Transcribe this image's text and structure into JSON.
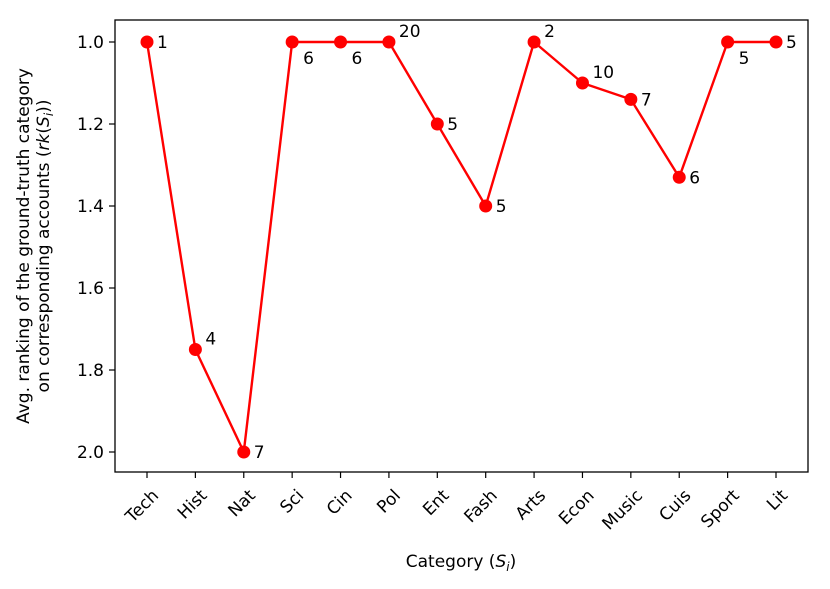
{
  "chart_data": {
    "type": "line",
    "title": "",
    "xlabel": "Category (S_i)",
    "xlabel_prefix": "Category (",
    "xlabel_var": "S",
    "xlabel_sub": "i",
    "xlabel_suffix": ")",
    "ylabel_line1": "Avg. ranking of the ground-truth category",
    "ylabel_line2": "on corresponding accounts (rk(S_i))",
    "ylabel_line2_prefix": "on corresponding accounts (",
    "ylabel_line2_var": "rk",
    "ylabel_line2_open": "(",
    "ylabel_line2_S": "S",
    "ylabel_line2_sub": "i",
    "ylabel_line2_suffix": "))",
    "y_inverted": true,
    "ylim": [
      1.0,
      2.0
    ],
    "yticks": [
      "1.0",
      "1.2",
      "1.4",
      "1.6",
      "1.8",
      "2.0"
    ],
    "grid": false,
    "color": "#ff0000",
    "categories": [
      "Tech",
      "Hist",
      "Nat",
      "Sci",
      "Cin",
      "Pol",
      "Ent",
      "Fash",
      "Arts",
      "Econ",
      "Music",
      "Cuis",
      "Sport",
      "Lit"
    ],
    "values": [
      1.0,
      1.75,
      2.0,
      1.0,
      1.0,
      1.0,
      1.2,
      1.4,
      1.0,
      1.1,
      1.14,
      1.33,
      1.0,
      1.0
    ],
    "point_labels": [
      "1",
      "4",
      "7",
      "6",
      "6",
      "20",
      "5",
      "5",
      "2",
      "10",
      "7",
      "6",
      "5",
      "5"
    ],
    "label_positions": [
      "right",
      "upper-right",
      "right",
      "below-right",
      "below-right",
      "upper-right",
      "right",
      "right",
      "upper-right",
      "upper-right",
      "right",
      "right",
      "below-right",
      "right"
    ]
  }
}
